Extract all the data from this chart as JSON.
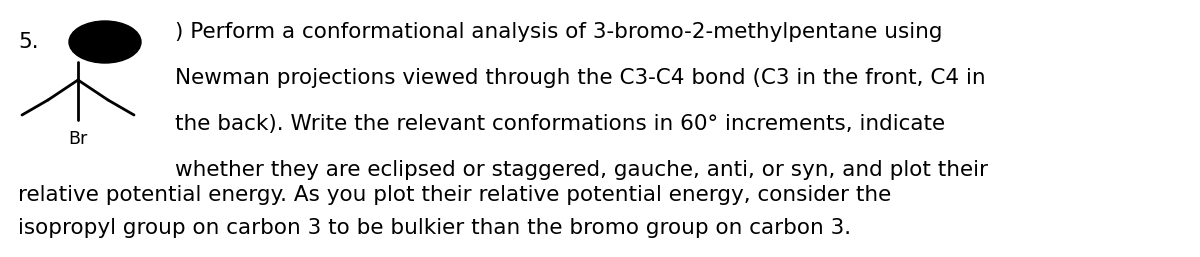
{
  "number": "5.",
  "text_line1": ") Perform a conformational analysis of 3-bromo-2-methylpentane using",
  "text_line2": "Newman projections viewed through the C3-C4 bond (C3 in the front, C4 in",
  "text_line3": "the back). Write the relevant conformations in 60° increments, indicate",
  "text_line4": "whether they are eclipsed or staggered, gauche, anti, or syn, and plot their",
  "text_line5": "relative potential energy. As you plot their relative potential energy, consider the",
  "text_line6": "isopropyl group on carbon 3 to be bulkier than the bromo group on carbon 3.",
  "br_label": "Br",
  "font_size": 15.5,
  "font_family": "DejaVu Sans",
  "text_color": "#000000",
  "background_color": "#ffffff"
}
